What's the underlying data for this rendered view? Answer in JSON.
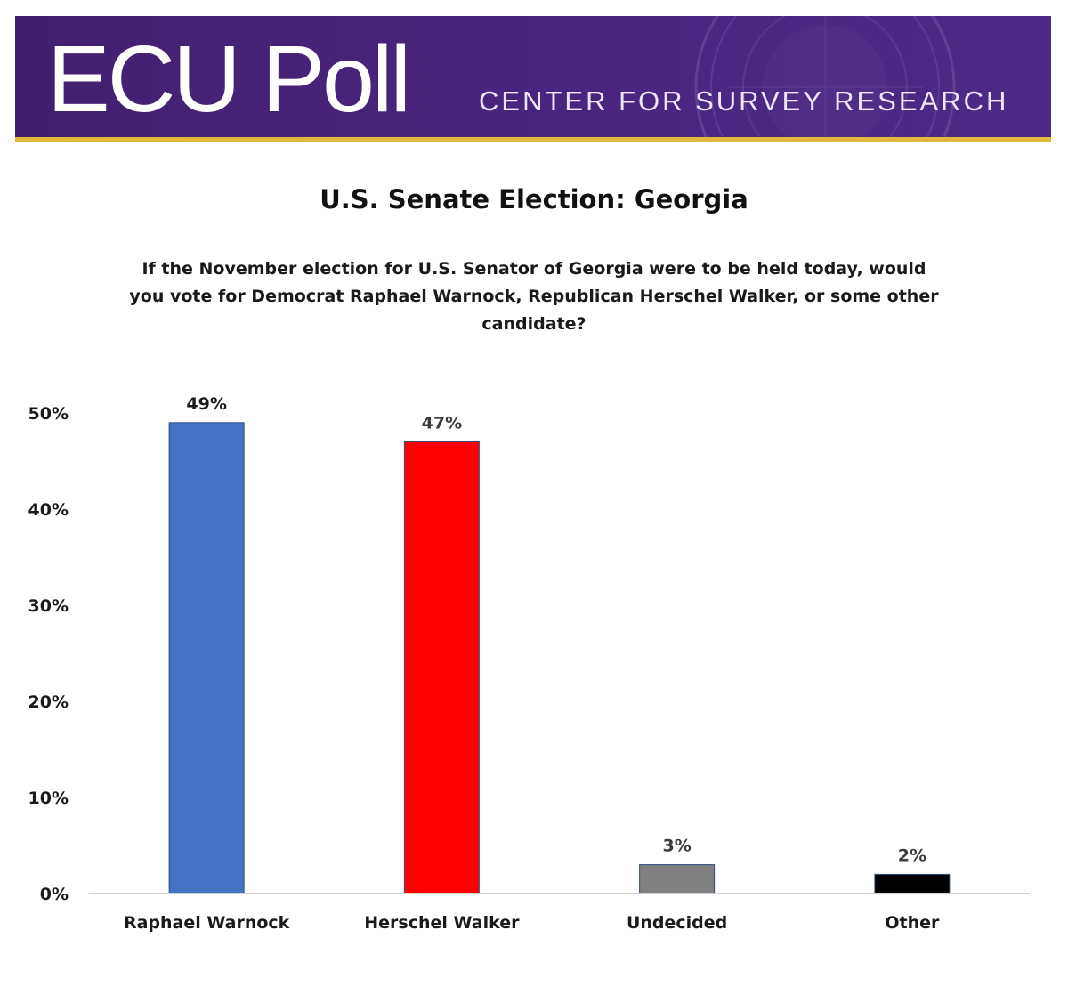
{
  "header": {
    "brand": "ECU Poll",
    "subtitle": "CENTER FOR SURVEY RESEARCH",
    "colors": {
      "banner": "#4a2580",
      "stripe": "#e2b93a"
    }
  },
  "chart_data": {
    "type": "bar",
    "title": "U.S. Senate Election: Georgia",
    "subtitle": "If the November election for U.S. Senator of Georgia were to be held today, would you vote for Democrat Raphael Warnock, Republican Herschel Walker, or some other candidate?",
    "categories": [
      "Raphael Warnock",
      "Herschel Walker",
      "Undecided",
      "Other"
    ],
    "values": [
      49,
      47,
      3,
      2
    ],
    "value_labels": [
      "49%",
      "47%",
      "3%",
      "2%"
    ],
    "colors": [
      "#4472c4",
      "#ff0000",
      "#808080",
      "#000000"
    ],
    "yticks": [
      0,
      10,
      20,
      30,
      40,
      50
    ],
    "ytick_labels": [
      "0%",
      "10%",
      "20%",
      "30%",
      "40%",
      "50%"
    ],
    "ylim": [
      0,
      50
    ],
    "xlabel": "",
    "ylabel": "",
    "grid": false,
    "legend": "none"
  }
}
